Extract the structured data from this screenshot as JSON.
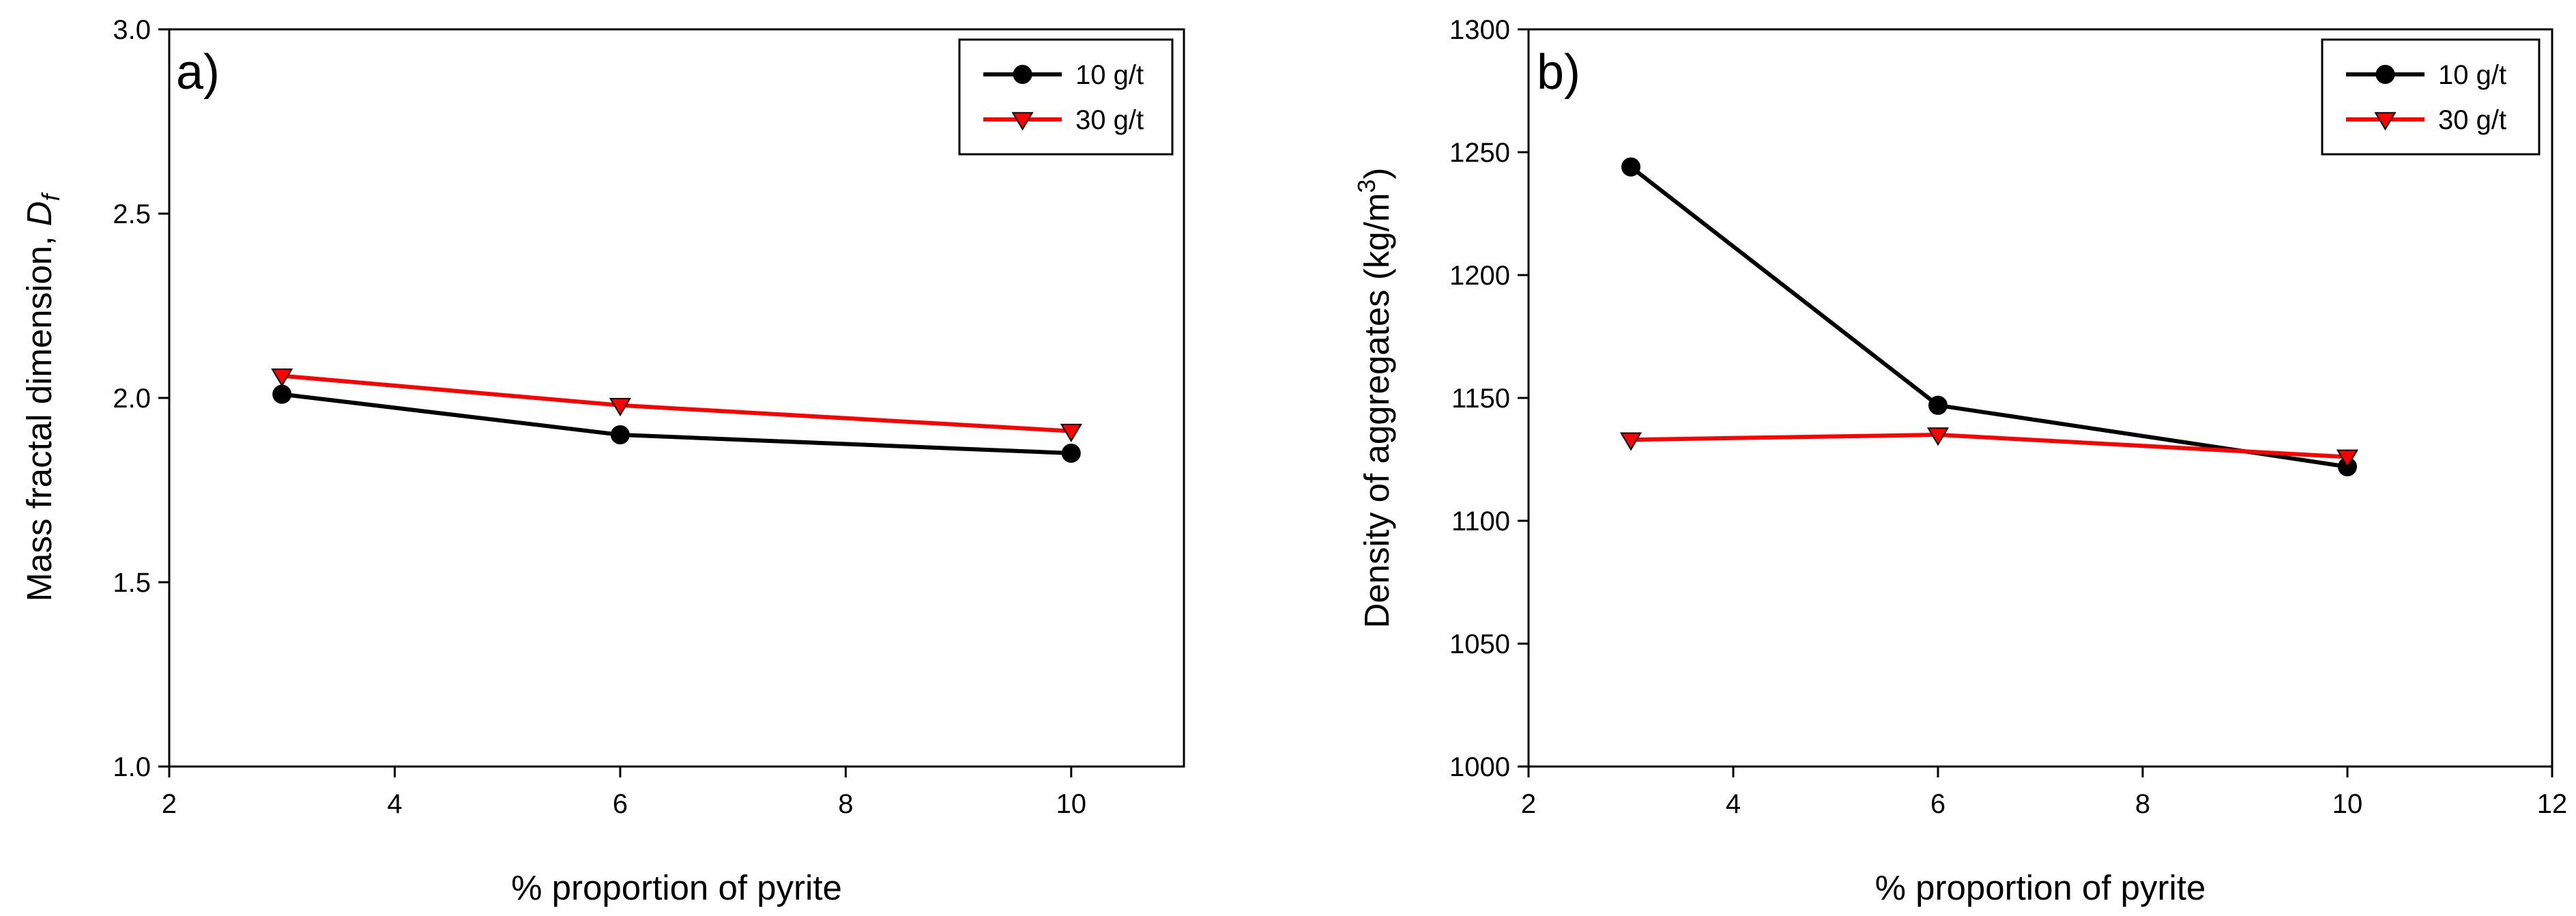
{
  "chart_data": [
    {
      "type": "line",
      "panel_label": "a)",
      "title": "",
      "xlabel": "% proportion of pyrite",
      "ylabel_main": "Mass fractal dimension, ",
      "ylabel_symbol": "D",
      "ylabel_subscript": "f",
      "xlim": [
        2,
        11
      ],
      "ylim": [
        1.0,
        3.0
      ],
      "xticks": [
        2,
        4,
        6,
        8,
        10
      ],
      "xtick_labels": [
        "2",
        "4",
        "6",
        "8",
        "10"
      ],
      "yticks": [
        1.0,
        1.5,
        2.0,
        2.5,
        3.0
      ],
      "ytick_labels": [
        "1.0",
        "1.5",
        "2.0",
        "2.5",
        "3.0"
      ],
      "grid": false,
      "legend_position": "top-right",
      "series": [
        {
          "name": "10 g/t",
          "color": "#000000",
          "marker": "circle",
          "x": [
            3,
            6,
            10
          ],
          "y": [
            2.01,
            1.9,
            1.85
          ]
        },
        {
          "name": "30 g/t",
          "color": "#ff0000",
          "marker": "triangle-down",
          "x": [
            3,
            6,
            10
          ],
          "y": [
            2.06,
            1.98,
            1.91
          ]
        }
      ]
    },
    {
      "type": "line",
      "panel_label": "b)",
      "title": "",
      "xlabel": "% proportion of pyrite",
      "ylabel_main": "Density of aggregates (kg/m",
      "ylabel_superscript": "3",
      "ylabel_end": ")",
      "xlim": [
        2,
        12
      ],
      "ylim": [
        1000,
        1300
      ],
      "xticks": [
        2,
        4,
        6,
        8,
        10,
        12
      ],
      "xtick_labels": [
        "2",
        "4",
        "6",
        "8",
        "10",
        "12"
      ],
      "yticks": [
        1000,
        1050,
        1100,
        1150,
        1200,
        1250,
        1300
      ],
      "ytick_labels": [
        "1000",
        "1050",
        "1100",
        "1150",
        "1200",
        "1250",
        "1300"
      ],
      "grid": false,
      "legend_position": "top-right",
      "series": [
        {
          "name": "10 g/t",
          "color": "#000000",
          "marker": "circle",
          "x": [
            3,
            6,
            10
          ],
          "y": [
            1244,
            1147,
            1122
          ]
        },
        {
          "name": "30 g/t",
          "color": "#ff0000",
          "marker": "triangle-down",
          "x": [
            3,
            6,
            10
          ],
          "y": [
            1133,
            1135,
            1126
          ]
        }
      ]
    }
  ]
}
